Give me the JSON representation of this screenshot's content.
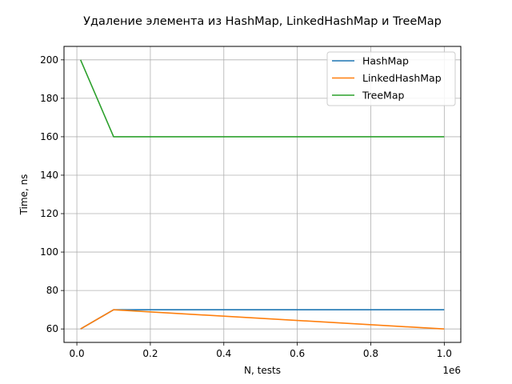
{
  "chart_data": {
    "type": "line",
    "title": "Удаление элемента из HashMap, LinkedHashMap и TreeMap",
    "xlabel": "N, tests",
    "ylabel": "Time, ns",
    "x_offset_label": "1e6",
    "xlim": [
      -35000,
      1045000
    ],
    "ylim": [
      53,
      207
    ],
    "x_ticks": [
      0,
      200000,
      400000,
      600000,
      800000,
      1000000
    ],
    "x_tick_labels": [
      "0.0",
      "0.2",
      "0.4",
      "0.6",
      "0.8",
      "1.0"
    ],
    "y_ticks": [
      60,
      80,
      100,
      120,
      140,
      160,
      180,
      200
    ],
    "y_tick_labels": [
      "60",
      "80",
      "100",
      "120",
      "140",
      "160",
      "180",
      "200"
    ],
    "grid": true,
    "legend_position": "top-right",
    "x": [
      10000,
      100000,
      1000000
    ],
    "series": [
      {
        "name": "HashMap",
        "color": "#1f77b4",
        "values": [
          60,
          70,
          70
        ]
      },
      {
        "name": "LinkedHashMap",
        "color": "#ff7f0e",
        "values": [
          60,
          70,
          60
        ]
      },
      {
        "name": "TreeMap",
        "color": "#2ca02c",
        "values": [
          200,
          160,
          160
        ]
      }
    ]
  }
}
